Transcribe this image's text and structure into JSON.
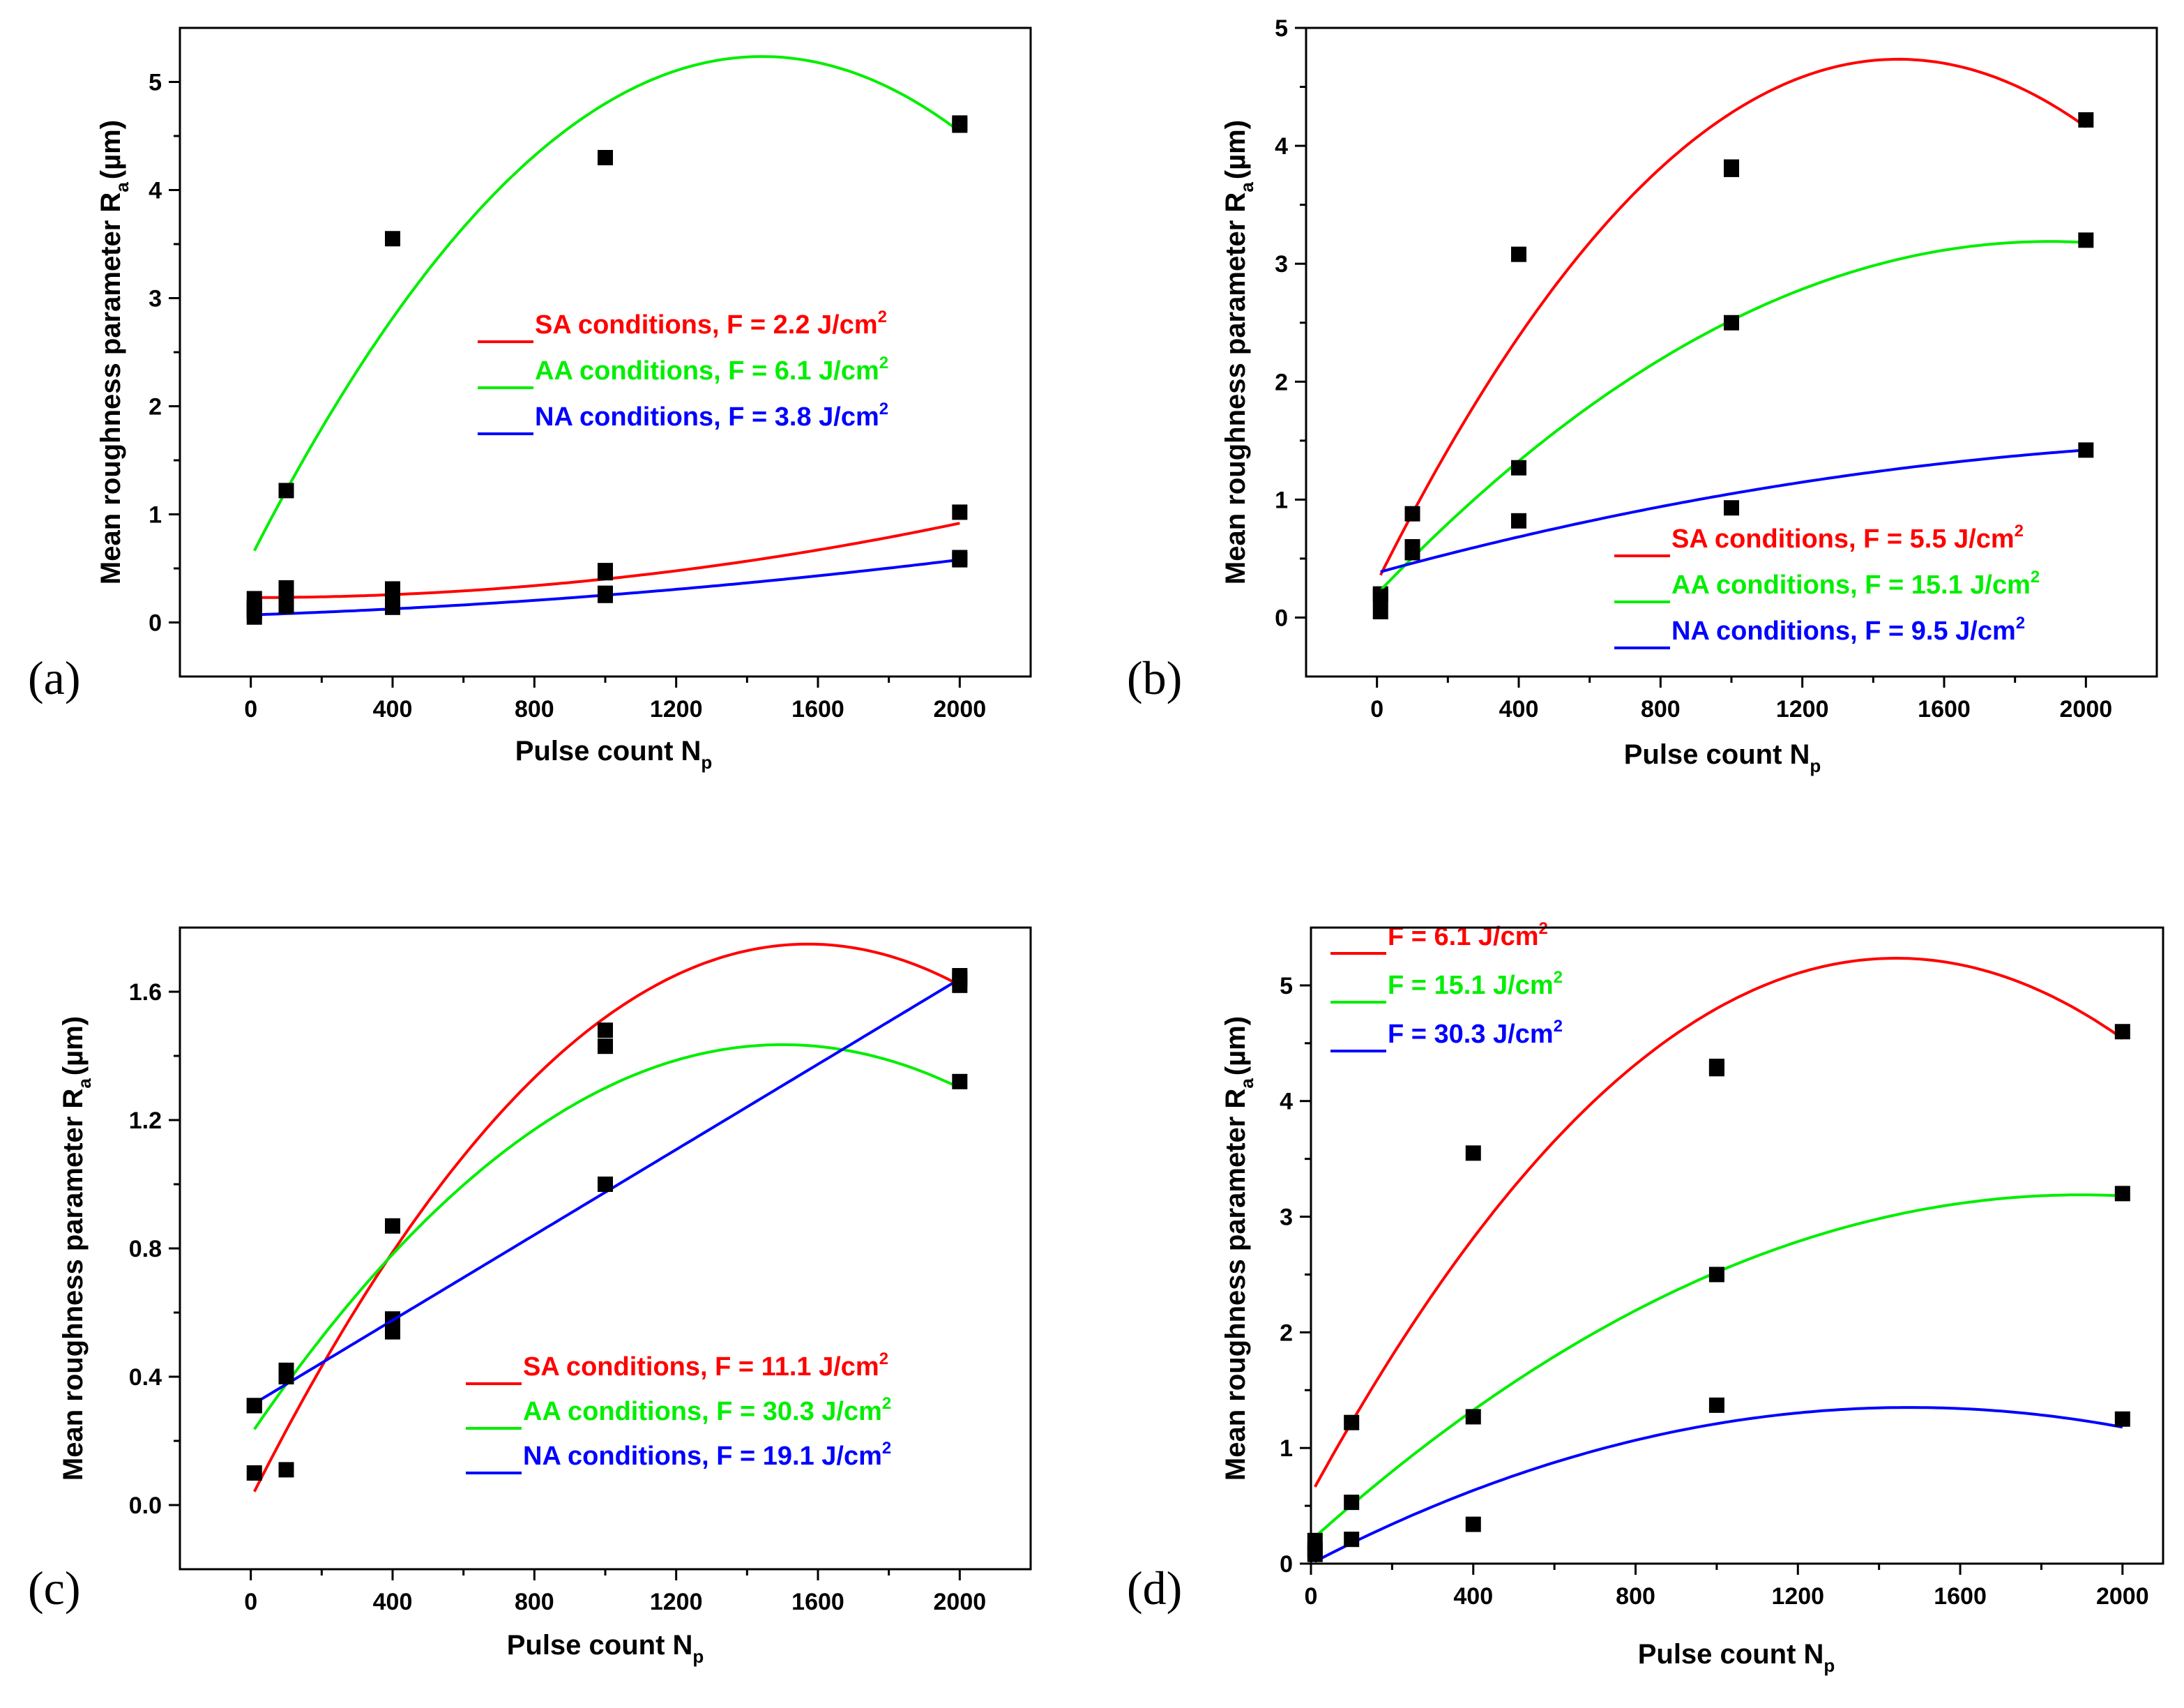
{
  "figure": {
    "panels": [
      {
        "id": "a",
        "label": "(a)"
      },
      {
        "id": "b",
        "label": "(b)"
      },
      {
        "id": "c",
        "label": "(c)"
      },
      {
        "id": "d",
        "label": "(d)"
      }
    ]
  },
  "chart_data": [
    {
      "type": "scatter",
      "panel": "(a)",
      "xlabel": "Pulse count N",
      "xlabel_sub": "p",
      "ylabel": "Mean roughness parameter R",
      "ylabel_sub": "a",
      "ylabel_unit": "(µm)",
      "xlim": [
        -200,
        2200
      ],
      "ylim": [
        -0.5,
        5.5
      ],
      "xticks": [
        0,
        400,
        800,
        1200,
        1600,
        2000
      ],
      "xtick_labels": [
        "0",
        "400",
        "800",
        "1200",
        "1600",
        "2000"
      ],
      "yticks": [
        0,
        1,
        2,
        3,
        4,
        5
      ],
      "ytick_labels": [
        "0",
        "1",
        "2",
        "3",
        "4",
        "5"
      ],
      "series": [
        {
          "name": "SA conditions, F = 2.2 J/cm",
          "sup": "2",
          "color": "#ff0000",
          "x": [
            10,
            10,
            100,
            100,
            400,
            400,
            1000,
            1000,
            2000
          ],
          "y": [
            0.22,
            0.15,
            0.32,
            0.28,
            0.31,
            0.28,
            0.48,
            0.46,
            1.02
          ],
          "fit": [
            0.23,
            6.65e-08,
            1.72e-07
          ]
        },
        {
          "name": "AA conditions, F = 6.1 J/cm",
          "sup": "2",
          "color": "#00ee00",
          "x": [
            10,
            100,
            400,
            1000,
            2000,
            2000
          ],
          "y": [
            0.12,
            1.22,
            3.55,
            4.3,
            4.62,
            4.6
          ],
          "fit": [
            0.6,
            0.00643,
            -2.23e-06
          ]
        },
        {
          "name": "NA conditions, F = 3.8 J/cm",
          "sup": "2",
          "color": "#0000ff",
          "x": [
            10,
            10,
            100,
            400,
            1000,
            1000,
            2000,
            2000
          ],
          "y": [
            0.05,
            0.1,
            0.15,
            0.14,
            0.27,
            0.25,
            0.58,
            0.6
          ],
          "fit": [
            0.07,
            0.00011,
            7.25e-08
          ]
        }
      ]
    },
    {
      "type": "scatter",
      "panel": "(b)",
      "xlabel": "Pulse count N",
      "xlabel_sub": "p",
      "ylabel": "Mean roughness parameter R",
      "ylabel_sub": "a",
      "ylabel_unit": "(µm)",
      "xlim": [
        -200,
        2200
      ],
      "ylim": [
        -0.5,
        5
      ],
      "xticks": [
        0,
        400,
        800,
        1200,
        1600,
        2000
      ],
      "xtick_labels": [
        "0",
        "400",
        "800",
        "1200",
        "1600",
        "2000"
      ],
      "yticks": [
        0,
        1,
        2,
        3,
        4,
        5
      ],
      "ytick_labels": [
        "0",
        "1",
        "2",
        "3",
        "4",
        "5"
      ],
      "series": [
        {
          "name": "SA conditions, F = 5.5 J/cm",
          "sup": "2",
          "color": "#ff0000",
          "x": [
            10,
            100,
            400,
            1000,
            1000,
            2000
          ],
          "y": [
            0.2,
            0.88,
            3.08,
            3.82,
            3.8,
            4.22
          ],
          "fit": [
            0.3,
            0.00603,
            -2.05e-06
          ]
        },
        {
          "name": "AA conditions, F = 15.1 J/cm",
          "sup": "2",
          "color": "#00ee00",
          "x": [
            10,
            100,
            400,
            1000,
            2000
          ],
          "y": [
            0.05,
            0.55,
            1.27,
            2.5,
            3.2
          ],
          "fit": [
            0.2,
            0.00315,
            -8.3e-07
          ]
        },
        {
          "name": "NA conditions, F = 9.5 J/cm",
          "sup": "2",
          "color": "#0000ff",
          "x": [
            10,
            100,
            400,
            1000,
            2000
          ],
          "y": [
            0.18,
            0.6,
            0.82,
            0.93,
            1.42
          ],
          "fit": [
            0.38,
            0.00082,
            -1.5e-07
          ]
        }
      ]
    },
    {
      "type": "scatter",
      "panel": "(c)",
      "xlabel": "Pulse count N",
      "xlabel_sub": "p",
      "ylabel": "Mean roughness parameter R",
      "ylabel_sub": "a",
      "ylabel_unit": "(µm)",
      "xlim": [
        -200,
        2200
      ],
      "ylim": [
        -0.2,
        1.8
      ],
      "xticks": [
        0,
        400,
        800,
        1200,
        1600,
        2000
      ],
      "xtick_labels": [
        "0",
        "400",
        "800",
        "1200",
        "1600",
        "2000"
      ],
      "yticks": [
        0,
        0.4,
        0.8,
        1.2,
        1.6
      ],
      "ytick_labels": [
        "0.0",
        "0.4",
        "0.8",
        "1.2",
        "1.6"
      ],
      "series": [
        {
          "name": "SA conditions, F = 11.1 J/cm",
          "sup": "2",
          "color": "#ff0000",
          "x": [
            10,
            100,
            400,
            1000,
            1000,
            2000,
            2000
          ],
          "y": [
            0.1,
            0.11,
            0.87,
            1.48,
            1.43,
            1.65,
            1.62
          ],
          "fit": [
            0.02,
            0.0022,
            -7e-07
          ]
        },
        {
          "name": "AA conditions, F = 30.3 J/cm",
          "sup": "2",
          "color": "#00ee00",
          "x": [
            10,
            100,
            400,
            1000,
            2000
          ],
          "y": [
            0.31,
            0.42,
            0.58,
            1.0,
            1.32
          ],
          "fit": [
            0.22,
            0.00162,
            -5.4e-07
          ]
        },
        {
          "name": "NA conditions, F = 19.1 J/cm",
          "sup": "2",
          "color": "#0000ff",
          "x": [
            10,
            100,
            400,
            1000,
            2000
          ],
          "y": [
            0.31,
            0.4,
            0.54,
            1.0,
            1.64
          ],
          "fit": [
            0.31,
            0.000665,
            0.0
          ]
        }
      ]
    },
    {
      "type": "scatter",
      "panel": "(d)",
      "xlabel": "Pulse count N",
      "xlabel_sub": "p",
      "ylabel": "Mean roughness parameter R",
      "ylabel_sub": "a",
      "ylabel_unit": "(µm)",
      "xlim": [
        0,
        2100
      ],
      "ylim": [
        0,
        5.5
      ],
      "xticks": [
        0,
        400,
        800,
        1200,
        1600,
        2000
      ],
      "xtick_labels": [
        "0",
        "400",
        "800",
        "1200",
        "1600",
        "2000"
      ],
      "yticks": [
        0,
        1,
        2,
        3,
        4,
        5
      ],
      "ytick_labels": [
        "0",
        "1",
        "2",
        "3",
        "4",
        "5"
      ],
      "series": [
        {
          "name": "F = 6.1 J/cm",
          "sup": "2",
          "color": "#ff0000",
          "x": [
            10,
            100,
            400,
            1000,
            1000,
            2000
          ],
          "y": [
            0.12,
            1.22,
            3.55,
            4.3,
            4.28,
            4.6
          ],
          "fit": [
            0.6,
            0.00643,
            -2.23e-06
          ]
        },
        {
          "name": "F = 15.1 J/cm",
          "sup": "2",
          "color": "#00ee00",
          "x": [
            10,
            100,
            400,
            1000,
            2000
          ],
          "y": [
            0.2,
            0.53,
            1.27,
            2.5,
            3.2
          ],
          "fit": [
            0.2,
            0.00315,
            -8.3e-07
          ]
        },
        {
          "name": "F = 30.3 J/cm",
          "sup": "2",
          "color": "#0000ff",
          "x": [
            10,
            100,
            400,
            1000,
            2000
          ],
          "y": [
            0.08,
            0.21,
            0.34,
            1.37,
            1.25
          ],
          "fit": [
            0.0,
            0.00183,
            -6.2e-07
          ]
        }
      ]
    }
  ]
}
